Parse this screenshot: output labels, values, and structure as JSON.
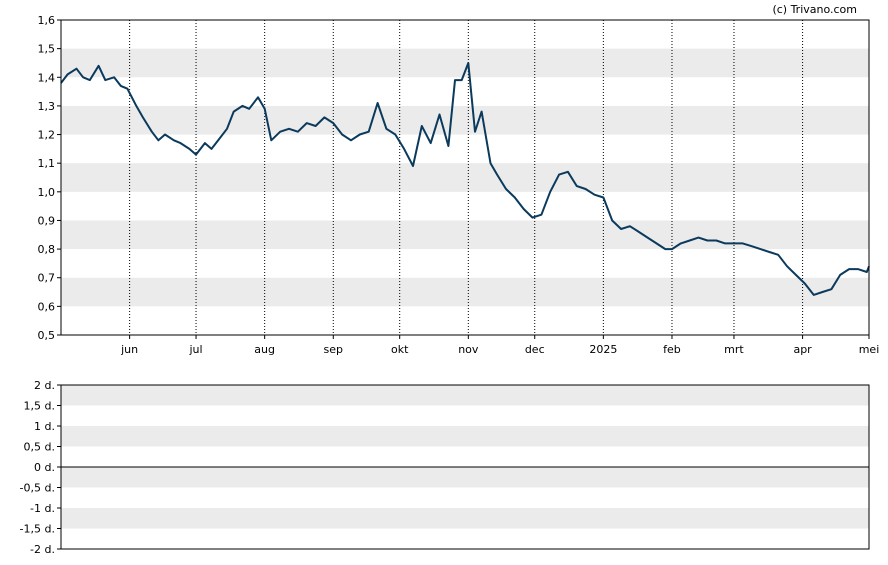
{
  "credit": "(c) Trivano.com",
  "chart_data": [
    {
      "type": "line",
      "title": "",
      "xlabel": "",
      "ylabel": "",
      "ylim": [
        0.5,
        1.6
      ],
      "y_ticks": [
        "0,5",
        "0,6",
        "0,7",
        "0,8",
        "0,9",
        "1,0",
        "1,1",
        "1,2",
        "1,3",
        "1,4",
        "1,5",
        "1,6"
      ],
      "x_ticks": [
        "jun",
        "jul",
        "aug",
        "sep",
        "okt",
        "nov",
        "dec",
        "2025",
        "feb",
        "mrt",
        "apr",
        "mei"
      ],
      "x_tick_dates": [
        "2024-06-01",
        "2024-07-01",
        "2024-08-01",
        "2024-09-01",
        "2024-10-01",
        "2024-11-01",
        "2024-12-01",
        "2025-01-01",
        "2025-02-01",
        "2025-03-01",
        "2025-04-01",
        "2025-05-01"
      ],
      "x_range": [
        "2024-05-01",
        "2025-05-01"
      ],
      "grid": "horizontal bands and dotted vertical lines",
      "line_color": "#0b3a5c",
      "band_color": "#ebebeb",
      "series": [
        {
          "points": [
            [
              "2024-05-01",
              1.38
            ],
            [
              "2024-05-04",
              1.41
            ],
            [
              "2024-05-08",
              1.43
            ],
            [
              "2024-05-11",
              1.4
            ],
            [
              "2024-05-14",
              1.39
            ],
            [
              "2024-05-18",
              1.44
            ],
            [
              "2024-05-21",
              1.39
            ],
            [
              "2024-05-25",
              1.4
            ],
            [
              "2024-05-28",
              1.37
            ],
            [
              "2024-05-31",
              1.36
            ],
            [
              "2024-06-04",
              1.3
            ],
            [
              "2024-06-07",
              1.26
            ],
            [
              "2024-06-11",
              1.21
            ],
            [
              "2024-06-14",
              1.18
            ],
            [
              "2024-06-17",
              1.2
            ],
            [
              "2024-06-21",
              1.18
            ],
            [
              "2024-06-24",
              1.17
            ],
            [
              "2024-06-28",
              1.15
            ],
            [
              "2024-07-01",
              1.13
            ],
            [
              "2024-07-05",
              1.17
            ],
            [
              "2024-07-08",
              1.15
            ],
            [
              "2024-07-11",
              1.18
            ],
            [
              "2024-07-15",
              1.22
            ],
            [
              "2024-07-18",
              1.28
            ],
            [
              "2024-07-22",
              1.3
            ],
            [
              "2024-07-25",
              1.29
            ],
            [
              "2024-07-29",
              1.33
            ],
            [
              "2024-08-01",
              1.29
            ],
            [
              "2024-08-04",
              1.18
            ],
            [
              "2024-08-08",
              1.21
            ],
            [
              "2024-08-12",
              1.22
            ],
            [
              "2024-08-16",
              1.21
            ],
            [
              "2024-08-20",
              1.24
            ],
            [
              "2024-08-24",
              1.23
            ],
            [
              "2024-08-28",
              1.26
            ],
            [
              "2024-09-01",
              1.24
            ],
            [
              "2024-09-05",
              1.2
            ],
            [
              "2024-09-09",
              1.18
            ],
            [
              "2024-09-13",
              1.2
            ],
            [
              "2024-09-17",
              1.21
            ],
            [
              "2024-09-21",
              1.31
            ],
            [
              "2024-09-25",
              1.22
            ],
            [
              "2024-09-29",
              1.2
            ],
            [
              "2024-10-03",
              1.15
            ],
            [
              "2024-10-07",
              1.09
            ],
            [
              "2024-10-11",
              1.23
            ],
            [
              "2024-10-15",
              1.17
            ],
            [
              "2024-10-19",
              1.27
            ],
            [
              "2024-10-23",
              1.16
            ],
            [
              "2024-10-26",
              1.39
            ],
            [
              "2024-10-29",
              1.39
            ],
            [
              "2024-11-01",
              1.45
            ],
            [
              "2024-11-04",
              1.21
            ],
            [
              "2024-11-07",
              1.28
            ],
            [
              "2024-11-11",
              1.1
            ],
            [
              "2024-11-14",
              1.06
            ],
            [
              "2024-11-18",
              1.01
            ],
            [
              "2024-11-22",
              0.98
            ],
            [
              "2024-11-26",
              0.94
            ],
            [
              "2024-11-30",
              0.91
            ],
            [
              "2024-12-04",
              0.92
            ],
            [
              "2024-12-08",
              1.0
            ],
            [
              "2024-12-12",
              1.06
            ],
            [
              "2024-12-16",
              1.07
            ],
            [
              "2024-12-20",
              1.02
            ],
            [
              "2024-12-24",
              1.01
            ],
            [
              "2024-12-28",
              0.99
            ],
            [
              "2025-01-01",
              0.98
            ],
            [
              "2025-01-05",
              0.9
            ],
            [
              "2025-01-09",
              0.87
            ],
            [
              "2025-01-13",
              0.88
            ],
            [
              "2025-01-17",
              0.86
            ],
            [
              "2025-01-21",
              0.84
            ],
            [
              "2025-01-25",
              0.82
            ],
            [
              "2025-01-29",
              0.8
            ],
            [
              "2025-02-01",
              0.8
            ],
            [
              "2025-02-05",
              0.82
            ],
            [
              "2025-02-09",
              0.83
            ],
            [
              "2025-02-13",
              0.84
            ],
            [
              "2025-02-17",
              0.83
            ],
            [
              "2025-02-21",
              0.83
            ],
            [
              "2025-02-25",
              0.82
            ],
            [
              "2025-03-01",
              0.82
            ],
            [
              "2025-03-05",
              0.82
            ],
            [
              "2025-03-09",
              0.81
            ],
            [
              "2025-03-13",
              0.8
            ],
            [
              "2025-03-17",
              0.79
            ],
            [
              "2025-03-21",
              0.78
            ],
            [
              "2025-03-25",
              0.74
            ],
            [
              "2025-03-29",
              0.71
            ],
            [
              "2025-04-02",
              0.68
            ],
            [
              "2025-04-06",
              0.64
            ],
            [
              "2025-04-10",
              0.65
            ],
            [
              "2025-04-14",
              0.66
            ],
            [
              "2025-04-18",
              0.71
            ],
            [
              "2025-04-22",
              0.73
            ],
            [
              "2025-04-26",
              0.73
            ],
            [
              "2025-04-30",
              0.72
            ],
            [
              "2025-05-01",
              0.74
            ]
          ]
        }
      ]
    },
    {
      "type": "line",
      "title": "",
      "xlabel": "",
      "ylabel": "",
      "ylim": [
        -2,
        2
      ],
      "y_ticks": [
        "2 d.",
        "1,5 d.",
        "1 d.",
        "0,5 d.",
        "0 d.",
        "-0,5 d.",
        "-1 d.",
        "-1,5 d.",
        "-2 d."
      ],
      "zero_line": true,
      "series": []
    }
  ]
}
